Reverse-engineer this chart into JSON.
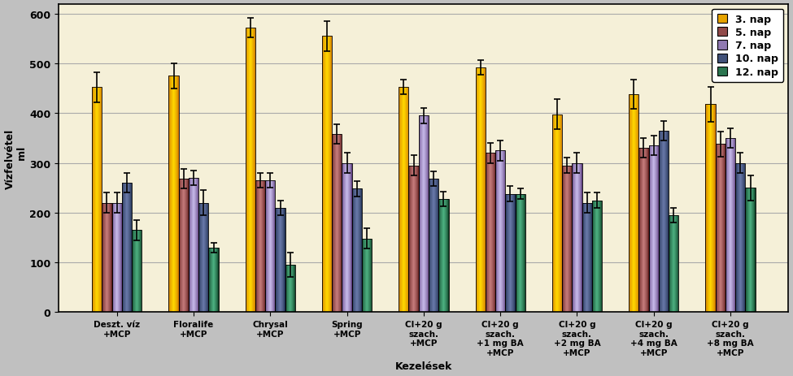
{
  "categories": [
    "Deszt. víz\n+MCP",
    "Floralife\n+MCP",
    "Chrysal\n+MCP",
    "Spring\n+MCP",
    "Cl+20 g\nszach.\n+MCP",
    "Cl+20 g\nszach.\n+1 mg BA\n+MCP",
    "Cl+20 g\nszach.\n+2 mg BA\n+MCP",
    "Cl+20 g\nszach.\n+4 mg BA\n+MCP",
    "Cl+20 g\nszach.\n+8 mg BA\n+MCP"
  ],
  "series_labels": [
    "3. nap",
    "5. nap",
    "7. nap",
    "10. nap",
    "12. nap"
  ],
  "bar_colors_light": [
    "#FFD700",
    "#C47A7A",
    "#C5B8E8",
    "#6878A8",
    "#4CAF80"
  ],
  "bar_colors_dark": [
    "#CC7000",
    "#5C1A1A",
    "#5A3A7A",
    "#1A2A4A",
    "#0A3A20"
  ],
  "values": [
    [
      452,
      220,
      220,
      260,
      165
    ],
    [
      475,
      268,
      270,
      220,
      130
    ],
    [
      572,
      265,
      265,
      210,
      95
    ],
    [
      555,
      358,
      300,
      248,
      148
    ],
    [
      453,
      295,
      395,
      268,
      228
    ],
    [
      492,
      320,
      325,
      238,
      238
    ],
    [
      398,
      295,
      300,
      220,
      225
    ],
    [
      438,
      330,
      335,
      365,
      195
    ],
    [
      418,
      338,
      350,
      300,
      250
    ]
  ],
  "errors": [
    [
      30,
      20,
      20,
      20,
      20
    ],
    [
      25,
      20,
      15,
      25,
      10
    ],
    [
      20,
      15,
      15,
      15,
      25
    ],
    [
      30,
      20,
      20,
      15,
      20
    ],
    [
      15,
      20,
      15,
      15,
      15
    ],
    [
      15,
      20,
      20,
      15,
      10
    ],
    [
      30,
      15,
      20,
      20,
      15
    ],
    [
      30,
      20,
      20,
      20,
      15
    ],
    [
      35,
      25,
      20,
      20,
      25
    ]
  ],
  "ylabel": "Vízfelvétel\n   ml",
  "xlabel": "Kezelések",
  "ylim": [
    0,
    620
  ],
  "yticks": [
    0,
    100,
    200,
    300,
    400,
    500,
    600
  ],
  "plot_bg": "#F5F0D8",
  "outer_bg": "#C0C0C0",
  "grid_color": "#AAAAAA"
}
